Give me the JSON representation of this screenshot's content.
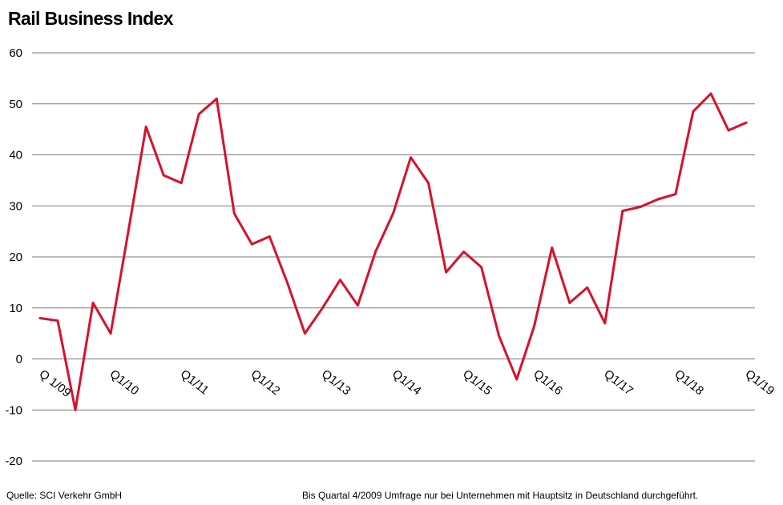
{
  "chart_data": {
    "type": "line",
    "title": "Rail Business Index",
    "ylim": [
      -20,
      60
    ],
    "yticks": [
      -20,
      -10,
      0,
      10,
      20,
      30,
      40,
      50,
      60
    ],
    "grid": true,
    "x": [
      "Q1/09",
      "Q2/09",
      "Q3/09",
      "Q4/09",
      "Q1/10",
      "Q2/10",
      "Q3/10",
      "Q4/10",
      "Q1/11",
      "Q2/11",
      "Q3/11",
      "Q4/11",
      "Q1/12",
      "Q2/12",
      "Q3/12",
      "Q4/12",
      "Q1/13",
      "Q2/13",
      "Q3/13",
      "Q4/13",
      "Q1/14",
      "Q2/14",
      "Q3/14",
      "Q4/14",
      "Q1/15",
      "Q2/15",
      "Q3/15",
      "Q4/15",
      "Q1/16",
      "Q2/16",
      "Q3/16",
      "Q4/16",
      "Q1/17",
      "Q2/17",
      "Q3/17",
      "Q4/17",
      "Q1/18",
      "Q2/18",
      "Q3/18",
      "Q4/18",
      "Q1/19"
    ],
    "tick_labels": [
      "Q 1/09",
      "Q1/10",
      "Q1/11",
      "Q1/12",
      "Q1/13",
      "Q1/14",
      "Q1/15",
      "Q1/16",
      "Q1/17",
      "Q1/18",
      "Q1/19"
    ],
    "series": [
      {
        "color": "#d8112a",
        "values": [
          8,
          7.5,
          -10,
          11,
          5,
          25,
          45.5,
          36,
          34.5,
          48,
          51,
          28.5,
          22.5,
          24,
          15,
          5,
          10,
          15.5,
          10.5,
          21,
          28.5,
          39.5,
          34.5,
          17,
          21,
          18,
          4.5,
          -4,
          6.5,
          21.8,
          11,
          14,
          7,
          29,
          29.8,
          31.3,
          32.3,
          48.5,
          52,
          44.8,
          46.3
        ]
      }
    ]
  },
  "footer": {
    "source": "Quelle: SCI Verkehr GmbH",
    "note": "Bis Quartal 4/2009 Umfrage nur bei Unternehmen mit Hauptsitz in Deutschland durchgeführt."
  }
}
